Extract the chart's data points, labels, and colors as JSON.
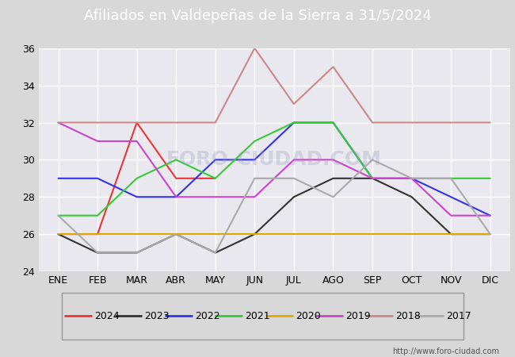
{
  "title": "Afiliados en Valdepeñas de la Sierra a 31/5/2024",
  "title_bg": "#4d7cc7",
  "months": [
    "ENE",
    "FEB",
    "MAR",
    "ABR",
    "MAY",
    "JUN",
    "JUL",
    "AGO",
    "SEP",
    "OCT",
    "NOV",
    "DIC"
  ],
  "ylim": [
    24,
    36
  ],
  "yticks": [
    24,
    26,
    28,
    30,
    32,
    34,
    36
  ],
  "watermark": "FORO-CIUDAD.COM",
  "url": "http://www.foro-ciudad.com",
  "series": {
    "2024": {
      "color": "#ee3333",
      "data": [
        26,
        26,
        32,
        29,
        29,
        null,
        null,
        null,
        null,
        null,
        null,
        null
      ]
    },
    "2023": {
      "color": "#333333",
      "data": [
        26,
        25,
        25,
        26,
        25,
        26,
        28,
        29,
        29,
        28,
        26,
        26
      ]
    },
    "2022": {
      "color": "#3333ee",
      "data": [
        29,
        29,
        28,
        28,
        30,
        30,
        32,
        32,
        29,
        29,
        28,
        27
      ]
    },
    "2021": {
      "color": "#33cc33",
      "data": [
        27,
        27,
        29,
        30,
        29,
        31,
        32,
        32,
        29,
        29,
        29,
        29
      ]
    },
    "2020": {
      "color": "#ddaa00",
      "data": [
        26,
        26,
        26,
        26,
        26,
        26,
        26,
        26,
        26,
        26,
        26,
        26
      ]
    },
    "2019": {
      "color": "#cc44cc",
      "data": [
        32,
        31,
        31,
        28,
        28,
        28,
        30,
        30,
        29,
        29,
        27,
        27
      ]
    },
    "2018": {
      "color": "#cc8888",
      "data": [
        32,
        32,
        32,
        32,
        32,
        36,
        33,
        35,
        32,
        32,
        32,
        32
      ]
    },
    "2017": {
      "color": "#aaaaaa",
      "data": [
        27,
        25,
        25,
        26,
        25,
        29,
        29,
        28,
        30,
        29,
        29,
        26
      ]
    }
  },
  "legend_order": [
    "2024",
    "2023",
    "2022",
    "2021",
    "2020",
    "2019",
    "2018",
    "2017"
  ],
  "fig_bg": "#d8d8d8",
  "plot_bg": "#e8e8ee",
  "grid_color": "#ffffff",
  "fontsize_title": 13,
  "fontsize_axis": 9,
  "fontsize_legend": 9,
  "linewidth": 1.5
}
